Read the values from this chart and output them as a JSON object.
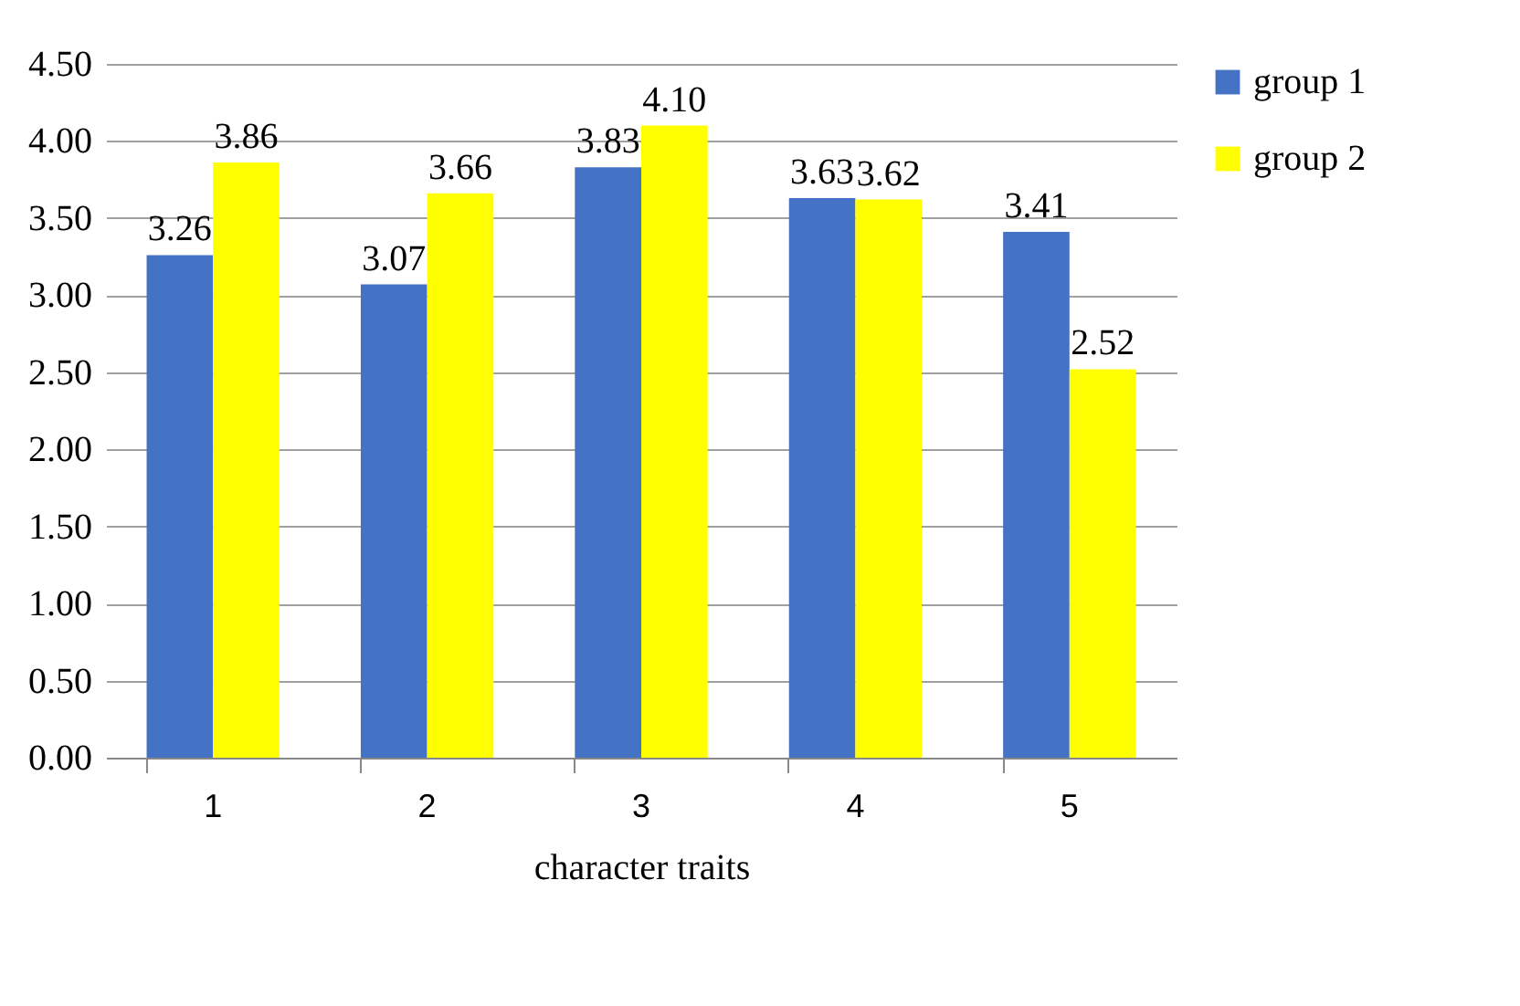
{
  "chart_data": {
    "type": "bar",
    "xlabel": "character traits",
    "categories": [
      "1",
      "2",
      "3",
      "4",
      "5"
    ],
    "series": [
      {
        "name": "group 1",
        "color": "#4472c4",
        "values": [
          3.26,
          3.07,
          3.83,
          3.63,
          3.41
        ],
        "value_labels": [
          "3.26",
          "3.07",
          "3.83",
          "3.63",
          "3.41"
        ]
      },
      {
        "name": "group 2",
        "color": "#ffff00",
        "values": [
          3.86,
          3.66,
          4.1,
          3.62,
          2.52
        ],
        "value_labels": [
          "3.86",
          "3.66",
          "4.10",
          "3.62",
          "2.52"
        ]
      }
    ],
    "ylim": [
      0,
      4.5
    ],
    "yticks": [
      {
        "value": 0,
        "label": "0.00"
      },
      {
        "value": 0.5,
        "label": "0.50"
      },
      {
        "value": 1,
        "label": "1.00"
      },
      {
        "value": 1.5,
        "label": "1.50"
      },
      {
        "value": 2,
        "label": "2.00"
      },
      {
        "value": 2.5,
        "label": "2.50"
      },
      {
        "value": 3,
        "label": "3.00"
      },
      {
        "value": 3.5,
        "label": "3.50"
      },
      {
        "value": 4,
        "label": "4.00"
      },
      {
        "value": 4.5,
        "label": "4.50"
      }
    ],
    "grid": "y",
    "legend": "right"
  }
}
